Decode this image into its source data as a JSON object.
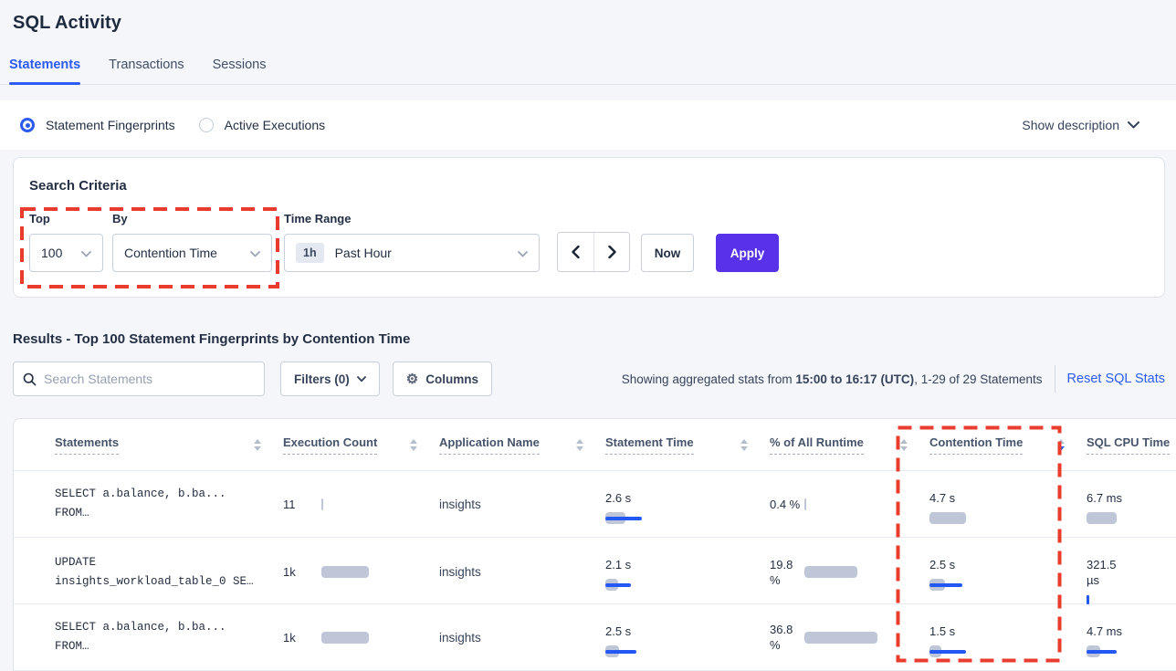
{
  "page": {
    "title": "SQL Activity"
  },
  "tabs": [
    {
      "label": "Statements",
      "active": true
    },
    {
      "label": "Transactions",
      "active": false
    },
    {
      "label": "Sessions",
      "active": false
    }
  ],
  "mode_bar": {
    "options": [
      {
        "label": "Statement Fingerprints",
        "selected": true
      },
      {
        "label": "Active Executions",
        "selected": false
      }
    ],
    "show_description": "Show description"
  },
  "criteria": {
    "heading": "Search Criteria",
    "top": {
      "label": "Top",
      "value": "100"
    },
    "by": {
      "label": "By",
      "value": "Contention Time"
    },
    "time_range": {
      "label": "Time Range",
      "badge": "1h",
      "value": "Past Hour"
    },
    "now_label": "Now",
    "apply_label": "Apply"
  },
  "results": {
    "heading": "Results - Top 100 Statement Fingerprints by Contention Time"
  },
  "toolbar": {
    "search_placeholder": "Search Statements",
    "filters_label": "Filters (0)",
    "columns_label": "Columns",
    "showing_prefix": "Showing aggregated stats from ",
    "showing_bold": "15:00 to 16:17 (UTC)",
    "showing_suffix": ", 1-29 of 29 Statements",
    "reset_label": "Reset SQL Stats"
  },
  "table": {
    "columns": [
      {
        "label": "Statements"
      },
      {
        "label": "Execution Count"
      },
      {
        "label": "Application Name"
      },
      {
        "label": "Statement Time"
      },
      {
        "label": "% of All Runtime"
      },
      {
        "label": "Contention Time",
        "sorted": "desc"
      },
      {
        "label": "SQL CPU Time"
      }
    ],
    "rows": [
      {
        "stmt": [
          "SELECT a.balance, b.ba...",
          "FROM…"
        ],
        "exec": {
          "value": "11",
          "gray": 2,
          "blue": 0
        },
        "app": "insights",
        "stmt_time": {
          "value": "2.6 s",
          "gray": 22,
          "blue": 40
        },
        "runtime": {
          "value": "0.4 %",
          "gray": 2,
          "blue": 0
        },
        "contention": {
          "value": "4.7 s",
          "gray": 40,
          "blue": 0
        },
        "cpu": {
          "value": "6.7 ms",
          "gray": 33,
          "blue": 0
        }
      },
      {
        "stmt": [
          "UPDATE",
          "insights_workload_table_0 SE…"
        ],
        "exec": {
          "value": "1k",
          "gray": 52,
          "blue": 0
        },
        "app": "insights",
        "stmt_time": {
          "value": "2.1 s",
          "gray": 14,
          "blue": 28
        },
        "runtime": {
          "value": "19.8 %",
          "gray": 58,
          "blue": 0
        },
        "contention": {
          "value": "2.5 s",
          "gray": 17,
          "blue": 36
        },
        "cpu": {
          "value": "321.5 µs",
          "gray": 0,
          "blue": 3
        }
      },
      {
        "stmt": [
          "SELECT a.balance, b.ba...",
          "FROM…"
        ],
        "exec": {
          "value": "1k",
          "gray": 52,
          "blue": 0
        },
        "app": "insights",
        "stmt_time": {
          "value": "2.5 s",
          "gray": 15,
          "blue": 34
        },
        "runtime": {
          "value": "36.8 %",
          "gray": 80,
          "blue": 0
        },
        "contention": {
          "value": "1.5 s",
          "gray": 13,
          "blue": 40
        },
        "cpu": {
          "value": "4.7 ms",
          "gray": 15,
          "blue": 33
        }
      }
    ]
  },
  "colors": {
    "accent_blue": "#2b5bf0",
    "apply_purple": "#5732e8",
    "bar_gray": "#bec6d8",
    "bar_blue": "#2458f2",
    "highlight_red": "#e93c2e"
  }
}
